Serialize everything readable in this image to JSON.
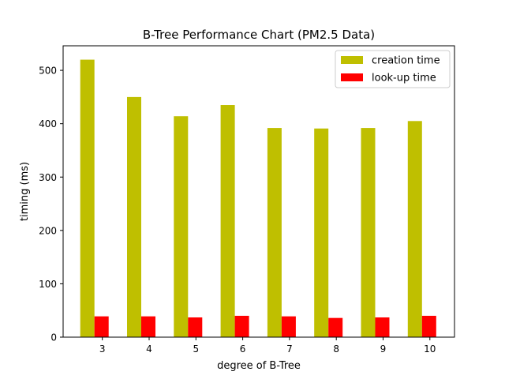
{
  "chart_data": {
    "type": "bar",
    "title": "B-Tree Performance Chart (PM2.5 Data)",
    "xlabel": "degree of B-Tree",
    "ylabel": "timing (ms)",
    "categories": [
      "3",
      "4",
      "5",
      "6",
      "7",
      "8",
      "9",
      "10"
    ],
    "series": [
      {
        "name": "creation time",
        "color": "#bfbf00",
        "values": [
          520,
          450,
          414,
          435,
          392,
          391,
          392,
          405
        ]
      },
      {
        "name": "look-up time",
        "color": "#ff0000",
        "values": [
          39,
          39,
          37,
          40,
          39,
          36,
          37,
          40
        ]
      }
    ],
    "ylim": [
      0,
      546
    ],
    "yticks": [
      0,
      100,
      200,
      300,
      400,
      500
    ],
    "legend": "top-right",
    "grid": false
  }
}
